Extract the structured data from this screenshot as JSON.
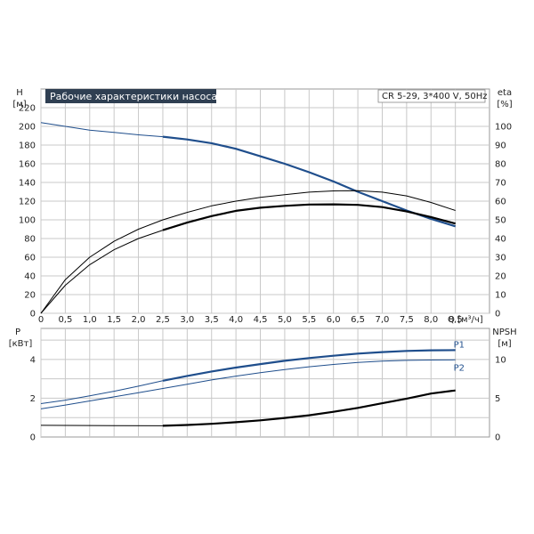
{
  "chart_data": [
    {
      "type": "line",
      "title": "Рабочие характеристики насоса",
      "info": "CR 5-29, 3*400 V, 50Hz",
      "xlabel": "Q [м³/ч]",
      "xlim": [
        0,
        9.2
      ],
      "x_ticks": [
        "0",
        "0,5",
        "1,0",
        "1,5",
        "2,0",
        "2,5",
        "3,0",
        "3,5",
        "4,0",
        "4,5",
        "5,0",
        "5,5",
        "6,0",
        "6,5",
        "7,0",
        "7,5",
        "8,0",
        "8,5"
      ],
      "y_left": {
        "label": "H",
        "unit": "[м]",
        "lim": [
          0,
          240
        ],
        "ticks": [
          "0",
          "20",
          "40",
          "60",
          "80",
          "100",
          "120",
          "140",
          "160",
          "180",
          "200",
          "220"
        ]
      },
      "y_right": {
        "label": "eta",
        "unit": "[%]",
        "lim": [
          0,
          120
        ],
        "ticks": [
          "0",
          "10",
          "20",
          "30",
          "40",
          "50",
          "60",
          "70",
          "80",
          "90",
          "100"
        ]
      },
      "grid": true,
      "series": [
        {
          "axis": "left",
          "color": "#1f4e8c",
          "x": [
            0,
            0.5,
            1.0,
            1.5,
            2.0,
            2.5
          ],
          "y": [
            204,
            200,
            196,
            193.5,
            191,
            189
          ]
        },
        {
          "axis": "left",
          "color": "#1f4e8c",
          "x": [
            2.5,
            3.0,
            3.5,
            4.0,
            4.5,
            5.0,
            5.5,
            6.0,
            6.5,
            7.0,
            7.5,
            8.0,
            8.5
          ],
          "y": [
            189,
            186,
            182,
            176,
            168,
            160,
            151,
            141,
            130,
            120,
            110,
            101,
            93
          ]
        },
        {
          "axis": "right",
          "color": "#000000",
          "x": [
            0,
            0.5,
            1.0,
            1.5,
            2.0,
            2.5,
            3.0,
            3.5,
            4.0,
            4.5,
            5.0,
            5.5,
            6.0,
            6.5,
            7.0,
            7.5,
            8.0,
            8.5
          ],
          "y": [
            0,
            18,
            30,
            38.5,
            45,
            50,
            54,
            57.5,
            60,
            62,
            63.5,
            64.8,
            65.5,
            65.6,
            64.8,
            62.8,
            59.3,
            55
          ]
        },
        {
          "axis": "right",
          "color": "#000000",
          "x": [
            0,
            0.5,
            1.0,
            1.5,
            2.0,
            2.5
          ],
          "y": [
            0,
            15,
            26,
            34,
            40,
            44.5
          ]
        },
        {
          "axis": "right",
          "color": "#000000",
          "x": [
            2.5,
            3.0,
            3.5,
            4.0,
            4.5,
            5.0,
            5.5,
            6.0,
            6.5,
            7.0,
            7.5,
            8.0,
            8.5
          ],
          "y": [
            44.5,
            48.5,
            52,
            54.8,
            56.5,
            57.5,
            58.2,
            58.3,
            58,
            56.8,
            54.5,
            51.5,
            48
          ]
        }
      ]
    },
    {
      "type": "line",
      "xlim": [
        0,
        9.2
      ],
      "y_left": {
        "label": "P",
        "unit": "[кВт]",
        "lim": [
          0,
          5.6
        ],
        "ticks": [
          "0",
          "2",
          "4"
        ]
      },
      "y_right": {
        "label": "NPSH",
        "unit": "[м]",
        "lim": [
          0,
          14
        ],
        "ticks": [
          "0",
          "5",
          "10"
        ]
      },
      "grid": true,
      "series": [
        {
          "name": "P1",
          "axis": "left",
          "color": "#1f4e8c",
          "x": [
            0,
            0.5,
            1.0,
            1.5,
            2.0,
            2.5
          ],
          "y": [
            1.72,
            1.9,
            2.12,
            2.36,
            2.62,
            2.9
          ]
        },
        {
          "name": "P1",
          "axis": "left",
          "color": "#1f4e8c",
          "x": [
            2.5,
            3.0,
            3.5,
            4.0,
            4.5,
            5.0,
            5.5,
            6.0,
            6.5,
            7.0,
            7.5,
            8.0,
            8.5
          ],
          "y": [
            2.9,
            3.15,
            3.38,
            3.58,
            3.76,
            3.93,
            4.07,
            4.19,
            4.3,
            4.38,
            4.44,
            4.47,
            4.48
          ]
        },
        {
          "name": "P2",
          "axis": "left",
          "color": "#1f4e8c",
          "x": [
            0,
            0.5,
            1.0,
            1.5,
            2.0,
            2.5,
            3.0,
            3.5,
            4.0,
            4.5,
            5.0,
            5.5,
            6.0,
            6.5,
            7.0,
            7.5,
            8.0,
            8.5
          ],
          "y": [
            1.45,
            1.65,
            1.86,
            2.07,
            2.28,
            2.5,
            2.72,
            2.94,
            3.14,
            3.32,
            3.48,
            3.62,
            3.74,
            3.84,
            3.91,
            3.95,
            3.97,
            3.98
          ]
        },
        {
          "axis": "right",
          "color": "#000000",
          "x": [
            0,
            2.5
          ],
          "y": [
            1.5,
            1.45
          ]
        },
        {
          "axis": "right",
          "color": "#000000",
          "x": [
            2.5,
            3.0,
            3.5,
            4.0,
            4.5,
            5.0,
            5.5,
            6.0,
            6.5,
            7.0,
            7.5,
            8.0,
            8.5
          ],
          "y": [
            1.45,
            1.55,
            1.7,
            1.9,
            2.15,
            2.45,
            2.8,
            3.25,
            3.75,
            4.35,
            4.95,
            5.6,
            6.0
          ]
        }
      ]
    }
  ]
}
